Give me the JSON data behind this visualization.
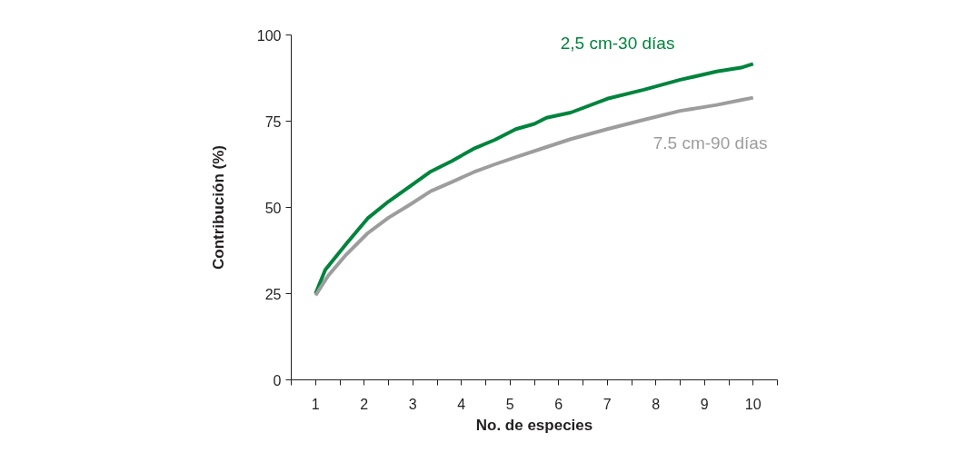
{
  "chart_data": {
    "type": "line",
    "xlabel": "No. de especies",
    "ylabel": "Contribución (%)",
    "xlim": [
      0.5,
      10.5
    ],
    "xticks": [
      {
        "value": 0.5,
        "label": null
      },
      1,
      {
        "value": 1.5,
        "label": null
      },
      2,
      {
        "value": 2.5,
        "label": null
      },
      3,
      {
        "value": 3.5,
        "label": null
      },
      4,
      {
        "value": 4.5,
        "label": null
      },
      5,
      {
        "value": 5.5,
        "label": null
      },
      6,
      {
        "value": 6.5,
        "label": null
      },
      7,
      {
        "value": 7.5,
        "label": null
      },
      8,
      {
        "value": 8.5,
        "label": null
      },
      9,
      {
        "value": 9.5,
        "label": null
      },
      10,
      {
        "value": 10.5,
        "label": null
      }
    ],
    "ylim": [
      0,
      100
    ],
    "yticks": [
      0,
      25,
      50,
      75,
      100
    ],
    "grid": false,
    "legend": false,
    "line_style": "solid",
    "marker": "none",
    "series": [
      {
        "name": "2,5 cm-30 días",
        "color": "#00843d",
        "x": [
          1,
          1.2,
          1.63,
          2.07,
          2.5,
          2.94,
          3.37,
          3.81,
          4.25,
          4.69,
          5.12,
          5.5,
          5.75,
          6.25,
          7.0,
          7.75,
          8.5,
          9.25,
          9.75,
          10
        ],
        "values": [
          25,
          31.9,
          39.4,
          46.8,
          51.7,
          56.1,
          60.4,
          63.5,
          67.0,
          69.6,
          72.7,
          74.2,
          76.0,
          77.5,
          81.5,
          84.1,
          87.0,
          89.4,
          90.5,
          91.6
        ]
      },
      {
        "name": "7.5 cm-90 días",
        "color": "#9d9d9d",
        "x": [
          1,
          1.26,
          1.63,
          2.07,
          2.5,
          2.94,
          3.37,
          3.81,
          4.25,
          4.69,
          5.12,
          5.75,
          6.25,
          7.0,
          7.75,
          8.5,
          9.25,
          9.75,
          10
        ],
        "values": [
          24.5,
          30.2,
          36.3,
          42.5,
          47.0,
          50.8,
          54.7,
          57.4,
          60.2,
          62.5,
          64.6,
          67.5,
          69.8,
          72.7,
          75.4,
          78.0,
          79.7,
          81.1,
          81.8
        ]
      }
    ]
  }
}
